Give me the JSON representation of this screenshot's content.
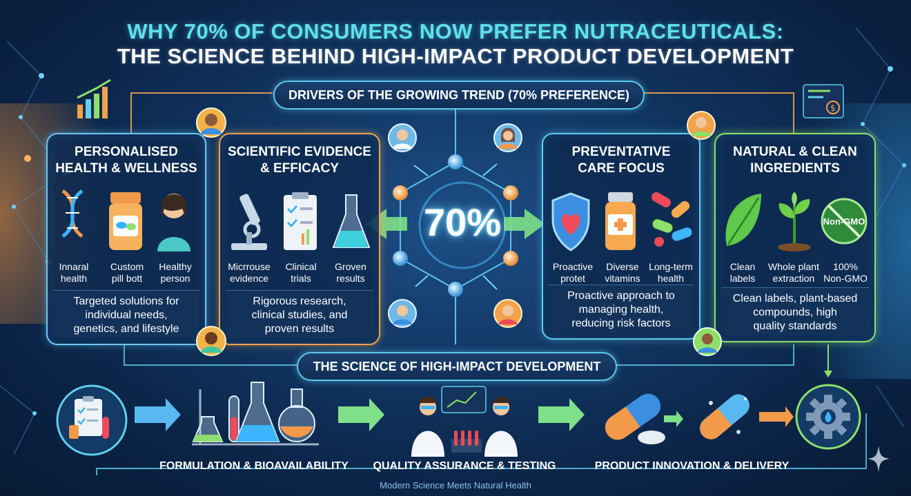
{
  "title": {
    "line1": "WHY 70% OF CONSUMERS NOW PREFER NUTRACEUTICALS:",
    "line2": "THE SCIENCE BEHIND HIGH-IMPACT PRODUCT DEVELOPMENT"
  },
  "drivers_heading": "DRIVERS OF THE GROWING TREND (70% PREFERENCE)",
  "center_stat": "70%",
  "cards": [
    {
      "title_line1": "PERSONALISED",
      "title_line2": "HEALTH & WELLNESS",
      "items": [
        {
          "icon": "dna-icon",
          "line1": "Innaral",
          "line2": "health"
        },
        {
          "icon": "pill-bottle-icon",
          "line1": "Custom",
          "line2": "pill bott"
        },
        {
          "icon": "person-icon",
          "line1": "Healthy",
          "line2": "person"
        }
      ],
      "desc_line1": "Targeted solutions for",
      "desc_line2": "individual needs,",
      "desc_line3": "genetics, and lifestyle"
    },
    {
      "title_line1": "SCIENTIFIC EVIDENCE",
      "title_line2": "& EFFICACY",
      "items": [
        {
          "icon": "microscope-icon",
          "line1": "Micrrouse",
          "line2": "evidence"
        },
        {
          "icon": "clipboard-icon",
          "line1": "Clinical",
          "line2": "trials"
        },
        {
          "icon": "flask-icon",
          "line1": "Groven",
          "line2": "results"
        }
      ],
      "desc_line1": "Rigorous research,",
      "desc_line2": "clinical studies, and",
      "desc_line3": "proven results"
    },
    {
      "title_line1": "PREVENTATIVE",
      "title_line2": "CARE FOCUS",
      "items": [
        {
          "icon": "shield-heart-icon",
          "line1": "Proactive",
          "line2": "protet"
        },
        {
          "icon": "vitamin-bottle-icon",
          "line1": "Diverse",
          "line2": "vitamins"
        },
        {
          "icon": "capsules-icon",
          "line1": "Long-term",
          "line2": "health"
        }
      ],
      "desc_line1": "Proactive approach to",
      "desc_line2": "managing health,",
      "desc_line3": "reducing risk factors"
    },
    {
      "title_line1": "NATURAL & CLEAN",
      "title_line2": "INGREDIENTS",
      "items": [
        {
          "icon": "leaf-icon",
          "line1": "Clean",
          "line2": "labels"
        },
        {
          "icon": "plant-icon",
          "line1": "Whole plant",
          "line2": "extraction"
        },
        {
          "icon": "non-gmo-icon",
          "line1": "100%",
          "line2": "Non-GMO",
          "badge": "Non-GMO"
        }
      ],
      "desc_line1": "Clean labels, plant-based",
      "desc_line2": "compounds, high",
      "desc_line3": "quality standards"
    }
  ],
  "science_heading": "THE SCIENCE OF HIGH-IMPACT DEVELOPMENT",
  "steps": [
    {
      "label": "FORMULATION & BIOAVAILABILITY"
    },
    {
      "label": "QUALITY ASSURANCE & TESTING"
    },
    {
      "label": "PRODUCT INNOVATION & DELIVERY"
    }
  ],
  "footer": "Modern Science Meets Natural Health",
  "colors": {
    "accent_cyan": "#5fe0ee",
    "card_blue": "#5fd0f0",
    "card_orange": "#f2a24a",
    "card_green": "#8de06a",
    "background": "#0b2447"
  }
}
